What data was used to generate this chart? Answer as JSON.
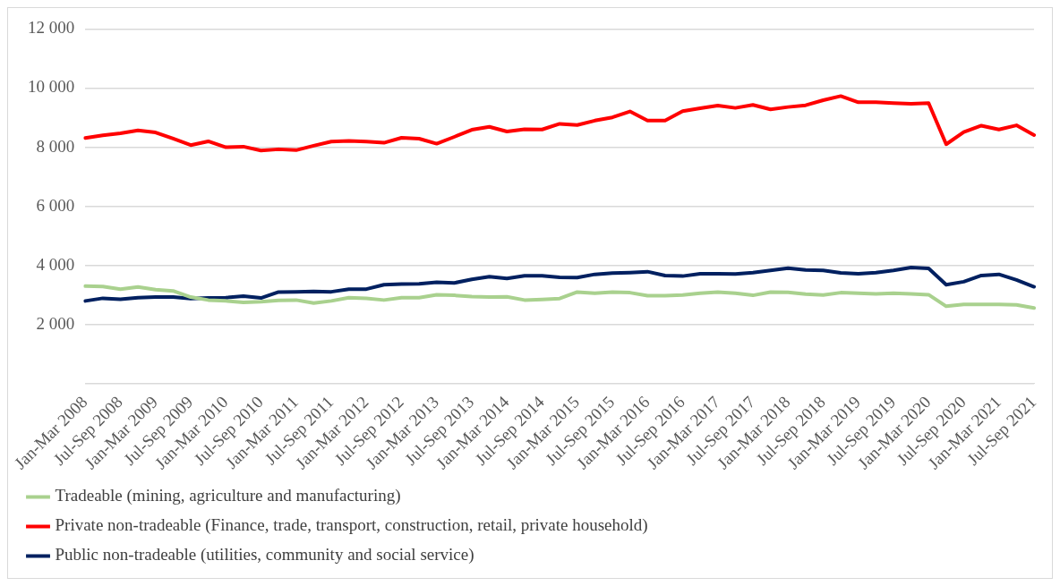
{
  "chart_data": {
    "type": "line",
    "categories": [
      "Jan-Mar 2008",
      null,
      "Jul-Sep 2008",
      null,
      "Jan-Mar 2009",
      null,
      "Jul-Sep 2009",
      null,
      "Jan-Mar 2010",
      null,
      "Jul-Sep 2010",
      null,
      "Jan-Mar 2011",
      null,
      "Jul-Sep 2011",
      null,
      "Jan-Mar 2012",
      null,
      "Jul-Sep 2012",
      null,
      "Jan-Mar 2013",
      null,
      "Jul-Sep 2013",
      null,
      "Jan-Mar 2014",
      null,
      "Jul-Sep 2014",
      null,
      "Jan-Mar 2015",
      null,
      "Jul-Sep 2015",
      null,
      "Jan-Mar 2016",
      null,
      "Jul-Sep 2016",
      null,
      "Jan-Mar 2017",
      null,
      "Jul-Sep 2017",
      null,
      "Jan-Mar 2018",
      null,
      "Jul-Sep 2018",
      null,
      "Jan-Mar 2019",
      null,
      "Jul-Sep 2019",
      null,
      "Jan-Mar 2020",
      null,
      "Jul-Sep 2020",
      null,
      "Jan-Mar 2021",
      null,
      "Jul-Sep 2021"
    ],
    "series": [
      {
        "name": "Tradeable (mining, agriculture and manufacturing)",
        "color": "#a9d18e",
        "values": [
          3300,
          3290,
          3200,
          3270,
          3180,
          3140,
          2930,
          2830,
          2800,
          2750,
          2770,
          2820,
          2830,
          2730,
          2800,
          2910,
          2890,
          2830,
          2910,
          2910,
          3010,
          2990,
          2950,
          2930,
          2940,
          2830,
          2850,
          2880,
          3100,
          3060,
          3100,
          3080,
          2980,
          2980,
          3000,
          3060,
          3100,
          3060,
          2990,
          3100,
          3090,
          3030,
          3000,
          3080,
          3060,
          3040,
          3060,
          3040,
          3010,
          2620,
          2680,
          2680,
          2680,
          2670,
          2560
        ]
      },
      {
        "name": "Private non-tradeable (Finance, trade, transport, construction, retail, private household)",
        "color": "#ff0000",
        "values": [
          8310,
          8400,
          8470,
          8570,
          8500,
          8290,
          8070,
          8200,
          8000,
          8020,
          7890,
          7930,
          7900,
          8050,
          8190,
          8210,
          8190,
          8150,
          8320,
          8290,
          8120,
          8350,
          8590,
          8690,
          8530,
          8610,
          8600,
          8790,
          8750,
          8900,
          9010,
          9210,
          8900,
          8900,
          9220,
          9320,
          9410,
          9330,
          9430,
          9280,
          9360,
          9420,
          9590,
          9730,
          9520,
          9520,
          9490,
          9470,
          9490,
          8100,
          8510,
          8730,
          8600,
          8740,
          8410
        ]
      },
      {
        "name": "Public non-tradeable (utilities, community and social service)",
        "color": "#002060",
        "values": [
          2800,
          2890,
          2860,
          2910,
          2930,
          2930,
          2880,
          2900,
          2910,
          2960,
          2900,
          3100,
          3110,
          3120,
          3110,
          3200,
          3200,
          3350,
          3370,
          3380,
          3430,
          3410,
          3530,
          3620,
          3560,
          3650,
          3650,
          3600,
          3590,
          3700,
          3740,
          3760,
          3790,
          3660,
          3640,
          3720,
          3720,
          3710,
          3760,
          3830,
          3910,
          3850,
          3830,
          3750,
          3720,
          3760,
          3830,
          3930,
          3900,
          3350,
          3450,
          3660,
          3700,
          3510,
          3280
        ]
      }
    ],
    "ylim": [
      0,
      12000
    ],
    "yticks": [
      {
        "value": 0,
        "label": null
      },
      {
        "value": 2000,
        "label": "2 000"
      },
      {
        "value": 4000,
        "label": "4 000"
      },
      {
        "value": 6000,
        "label": "6 000"
      },
      {
        "value": 8000,
        "label": "8 000"
      },
      {
        "value": 10000,
        "label": "10 000"
      },
      {
        "value": 12000,
        "label": "12 000"
      }
    ],
    "grid": "y",
    "legend": "bottom",
    "marker": "none",
    "line_style": "solid"
  }
}
